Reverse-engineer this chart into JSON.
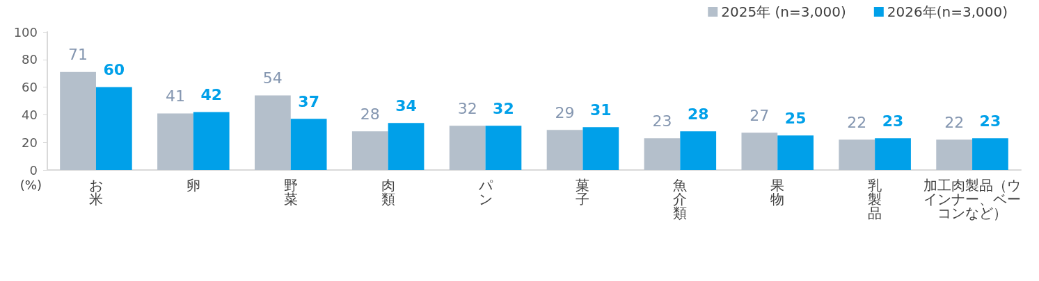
{
  "chart_data": {
    "type": "bar",
    "ylabel": "(%)",
    "categories": [
      "お米",
      "卵",
      "野菜",
      "肉類",
      "パン",
      "菓子",
      "魚介類",
      "果物",
      "乳製品",
      "加工肉製品（ウインナー、ベーコンなど）"
    ],
    "series": [
      {
        "name": "2025年 (n=3,000)",
        "color": "#b4bfcb",
        "values": [
          71,
          41,
          54,
          28,
          32,
          29,
          23,
          27,
          22,
          22
        ]
      },
      {
        "name": "2026年(n=3,000)",
        "color": "#00a0e9",
        "values": [
          60,
          42,
          37,
          34,
          32,
          31,
          28,
          25,
          23,
          23
        ]
      }
    ],
    "ylim": [
      0,
      100
    ],
    "yticks": [
      0,
      20,
      40,
      60,
      80,
      100
    ],
    "grid": false,
    "legend": "top right",
    "data_labels": true
  }
}
